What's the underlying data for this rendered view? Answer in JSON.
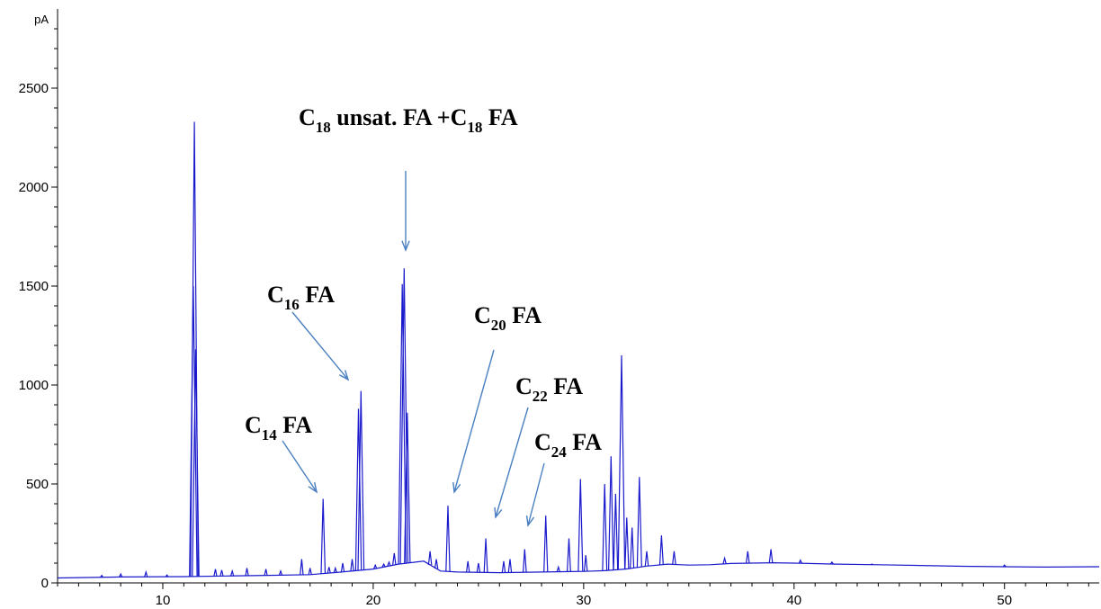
{
  "chart_data": {
    "type": "line",
    "title": "",
    "xlabel": "",
    "ylabel": "pA",
    "xlim": [
      5,
      54.5
    ],
    "ylim": [
      0,
      2900
    ],
    "x_ticks": [
      10,
      20,
      30,
      40,
      50
    ],
    "y_ticks": [
      0,
      500,
      1000,
      1500,
      2000,
      2500
    ],
    "grid": false,
    "line_color": "#1a1acc",
    "arrow_color": "#4a7fc1",
    "baseline": [
      [
        5,
        25
      ],
      [
        8,
        30
      ],
      [
        11,
        32
      ],
      [
        13,
        35
      ],
      [
        15,
        38
      ],
      [
        17,
        42
      ],
      [
        18.5,
        55
      ],
      [
        20,
        70
      ],
      [
        21.2,
        95
      ],
      [
        22.4,
        110
      ],
      [
        23.2,
        60
      ],
      [
        24,
        55
      ],
      [
        26,
        52
      ],
      [
        28,
        55
      ],
      [
        30,
        58
      ],
      [
        31,
        62
      ],
      [
        32,
        70
      ],
      [
        33,
        85
      ],
      [
        34,
        95
      ],
      [
        35,
        90
      ],
      [
        36,
        92
      ],
      [
        37,
        98
      ],
      [
        38,
        100
      ],
      [
        39,
        102
      ],
      [
        40,
        100
      ],
      [
        42,
        95
      ],
      [
        44,
        92
      ],
      [
        46,
        88
      ],
      [
        48,
        84
      ],
      [
        50,
        82
      ],
      [
        52,
        80
      ],
      [
        54.5,
        82
      ]
    ],
    "peaks": [
      [
        7.1,
        38
      ],
      [
        8.0,
        45
      ],
      [
        9.2,
        55
      ],
      [
        10.2,
        40
      ],
      [
        11.45,
        1500
      ],
      [
        11.5,
        2330
      ],
      [
        11.56,
        1180
      ],
      [
        12.5,
        70
      ],
      [
        12.8,
        65
      ],
      [
        13.3,
        60
      ],
      [
        14.0,
        75
      ],
      [
        14.9,
        70
      ],
      [
        15.6,
        60
      ],
      [
        16.6,
        120
      ],
      [
        17.0,
        75
      ],
      [
        17.62,
        425
      ],
      [
        17.9,
        80
      ],
      [
        18.2,
        75
      ],
      [
        18.55,
        100
      ],
      [
        19.0,
        120
      ],
      [
        19.3,
        880
      ],
      [
        19.42,
        970
      ],
      [
        20.1,
        90
      ],
      [
        20.5,
        95
      ],
      [
        20.75,
        105
      ],
      [
        21.0,
        150
      ],
      [
        21.38,
        1510
      ],
      [
        21.47,
        1590
      ],
      [
        21.62,
        860
      ],
      [
        22.7,
        160
      ],
      [
        23.0,
        120
      ],
      [
        23.55,
        390
      ],
      [
        24.5,
        110
      ],
      [
        25.0,
        100
      ],
      [
        25.35,
        225
      ],
      [
        26.2,
        110
      ],
      [
        26.5,
        120
      ],
      [
        27.2,
        170
      ],
      [
        28.2,
        340
      ],
      [
        28.8,
        80
      ],
      [
        29.3,
        225
      ],
      [
        29.85,
        525
      ],
      [
        30.1,
        140
      ],
      [
        31.0,
        500
      ],
      [
        31.3,
        640
      ],
      [
        31.52,
        450
      ],
      [
        31.8,
        1150
      ],
      [
        32.05,
        330
      ],
      [
        32.3,
        280
      ],
      [
        32.65,
        535
      ],
      [
        33.0,
        160
      ],
      [
        33.7,
        240
      ],
      [
        34.3,
        160
      ],
      [
        36.7,
        125
      ],
      [
        37.8,
        160
      ],
      [
        38.9,
        170
      ],
      [
        40.3,
        115
      ],
      [
        41.8,
        105
      ],
      [
        43.7,
        95
      ],
      [
        50.0,
        90
      ]
    ],
    "annotations": [
      {
        "base": "C",
        "sub": "18",
        "tail": " unsat. FA +C",
        "sub2": "18",
        "tail2": " FA"
      },
      {
        "base": "C",
        "sub": "16",
        "tail": " FA"
      },
      {
        "base": "C",
        "sub": "20",
        "tail": " FA"
      },
      {
        "base": "C",
        "sub": "22",
        "tail": " FA"
      },
      {
        "base": "C",
        "sub": "24",
        "tail": " FA"
      },
      {
        "base": "C",
        "sub": "14",
        "tail": " FA"
      }
    ]
  }
}
